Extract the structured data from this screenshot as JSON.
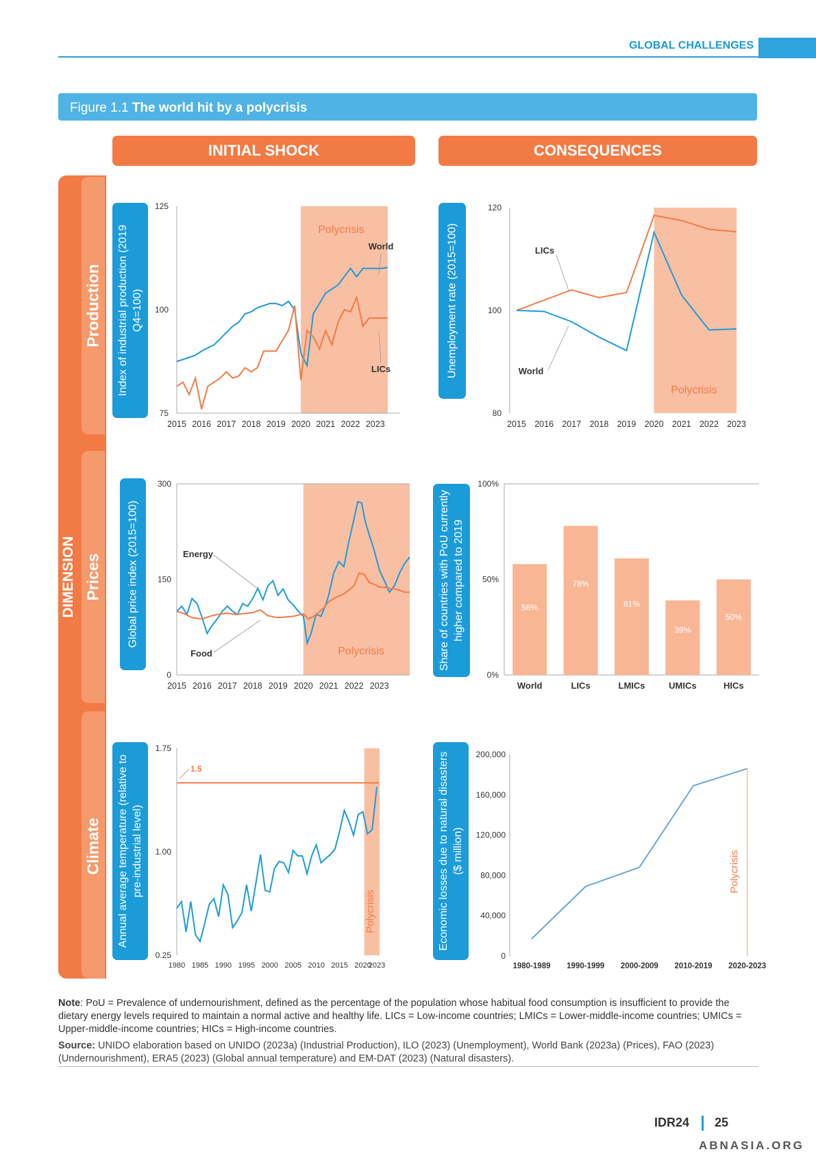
{
  "header": {
    "section": "GLOBAL CHALLENGES"
  },
  "figure": {
    "prefix": "Figure 1.1",
    "title": "The world hit by a polycrisis"
  },
  "columns": {
    "left": "INITIAL SHOCK",
    "right": "CONSEQUENCES"
  },
  "dimension": {
    "label": "DIMENSION",
    "rows": [
      "Production",
      "Prices",
      "Climate"
    ]
  },
  "colors": {
    "blue": "#1c9bd9",
    "orange": "#f27a45",
    "shade": "#f8bfa3",
    "bar": "#f8b694"
  },
  "chart_data": [
    {
      "id": "industrial",
      "type": "line",
      "ylabel": "Index of industrial production (2019 Q4=100)",
      "ylim": [
        75,
        125
      ],
      "yticks": [
        75,
        100,
        125
      ],
      "xlim": [
        2015,
        2024
      ],
      "xticks": [
        2015,
        2016,
        2017,
        2018,
        2019,
        2020,
        2021,
        2022,
        2023
      ],
      "shade": {
        "from": 2020,
        "to": 2023.5,
        "label": "Polycrisis"
      },
      "series": [
        {
          "name": "World",
          "color": "#1c9bd9",
          "x": [
            2015,
            2015.25,
            2015.5,
            2015.75,
            2016,
            2016.25,
            2016.5,
            2016.75,
            2017,
            2017.25,
            2017.5,
            2017.75,
            2018,
            2018.25,
            2018.5,
            2018.75,
            2019,
            2019.25,
            2019.5,
            2019.75,
            2020,
            2020.25,
            2020.5,
            2020.75,
            2021,
            2021.25,
            2021.5,
            2021.75,
            2022,
            2022.25,
            2022.5,
            2022.75,
            2023,
            2023.25,
            2023.5
          ],
          "values": [
            87.5,
            88,
            88.5,
            89,
            90,
            90.8,
            91.5,
            93,
            94.5,
            96,
            97,
            99,
            99.5,
            100.5,
            101,
            101.5,
            101.5,
            101,
            102,
            100,
            89.5,
            86.5,
            99,
            101.5,
            104,
            105,
            106,
            108,
            110,
            108,
            110,
            110,
            110,
            110,
            110.2
          ]
        },
        {
          "name": "LICs",
          "color": "#f27a45",
          "x": [
            2015,
            2015.25,
            2015.5,
            2015.75,
            2016,
            2016.25,
            2016.5,
            2016.75,
            2017,
            2017.25,
            2017.5,
            2017.75,
            2018,
            2018.25,
            2018.5,
            2018.75,
            2019,
            2019.25,
            2019.5,
            2019.75,
            2020,
            2020.25,
            2020.5,
            2020.75,
            2021,
            2021.25,
            2021.5,
            2021.75,
            2022,
            2022.25,
            2022.5,
            2022.75,
            2023,
            2023.25,
            2023.5
          ],
          "values": [
            81.5,
            82.5,
            79.5,
            83.5,
            76,
            81.5,
            82.5,
            83.5,
            85,
            83.5,
            84,
            86,
            85,
            86,
            90,
            90,
            90,
            92.5,
            95,
            101,
            83,
            95,
            93.5,
            90.5,
            95,
            91.5,
            97,
            100,
            99.5,
            103,
            96,
            98,
            98,
            98,
            98
          ]
        }
      ],
      "annotations": [
        "Polycrisis",
        "World",
        "LICs"
      ]
    },
    {
      "id": "unemployment",
      "type": "line",
      "ylabel": "Unemployment rate (2015=100)",
      "ylim": [
        80,
        120
      ],
      "yticks": [
        80,
        100,
        120
      ],
      "xlim": [
        2015,
        2023
      ],
      "xticks": [
        2015,
        2016,
        2017,
        2018,
        2019,
        2020,
        2021,
        2022,
        2023
      ],
      "shade": {
        "from": 2020,
        "to": 2023,
        "label": "Polycrisis"
      },
      "series": [
        {
          "name": "LICs",
          "color": "#f27a45",
          "x": [
            2015,
            2016,
            2017,
            2018,
            2019,
            2020,
            2021,
            2022,
            2023
          ],
          "values": [
            100,
            102,
            104,
            102.5,
            103.5,
            118.5,
            117.5,
            115.8,
            115.3
          ]
        },
        {
          "name": "World",
          "color": "#1c9bd9",
          "x": [
            2015,
            2016,
            2017,
            2018,
            2019,
            2020,
            2021,
            2022,
            2023
          ],
          "values": [
            100,
            99.8,
            97.8,
            94.8,
            92.2,
            115.2,
            103,
            96.2,
            96.4
          ]
        }
      ],
      "annotations": [
        "LICs",
        "World",
        "Polycrisis"
      ]
    },
    {
      "id": "prices",
      "type": "line",
      "ylabel": "Global price index (2015=100)",
      "ylim": [
        0,
        300
      ],
      "yticks": [
        0,
        150,
        300
      ],
      "xlim": [
        2015,
        2024.2
      ],
      "xticks": [
        2015,
        2016,
        2017,
        2018,
        2019,
        2020,
        2021,
        2022,
        2023
      ],
      "shade": {
        "from": 2020,
        "to": 2024.2,
        "label": "Polycrisis"
      },
      "series": [
        {
          "name": "Energy",
          "color": "#1c9bd9",
          "x": [
            2015,
            2015.2,
            2015.4,
            2015.6,
            2015.8,
            2016,
            2016.2,
            2016.4,
            2016.6,
            2016.8,
            2017,
            2017.2,
            2017.4,
            2017.6,
            2017.8,
            2018,
            2018.2,
            2018.4,
            2018.6,
            2018.8,
            2019,
            2019.2,
            2019.4,
            2019.6,
            2019.8,
            2020,
            2020.15,
            2020.3,
            2020.5,
            2020.7,
            2020.9,
            2021,
            2021.2,
            2021.4,
            2021.6,
            2021.8,
            2022,
            2022.15,
            2022.3,
            2022.45,
            2022.6,
            2022.8,
            2023,
            2023.2,
            2023.4,
            2023.6,
            2023.8,
            2024,
            2024.2
          ],
          "values": [
            100,
            108,
            95,
            120,
            112,
            90,
            65,
            78,
            88,
            100,
            108,
            100,
            95,
            112,
            108,
            120,
            136,
            118,
            140,
            148,
            125,
            135,
            118,
            110,
            100,
            92,
            50,
            65,
            95,
            92,
            112,
            125,
            160,
            178,
            170,
            210,
            245,
            272,
            270,
            240,
            220,
            195,
            165,
            148,
            130,
            140,
            160,
            175,
            185
          ]
        },
        {
          "name": "Food",
          "color": "#f27a45",
          "x": [
            2015,
            2015.3,
            2015.6,
            2016,
            2016.3,
            2016.6,
            2017,
            2017.3,
            2017.6,
            2018,
            2018.3,
            2018.6,
            2019,
            2019.3,
            2019.6,
            2020,
            2020.2,
            2020.4,
            2020.6,
            2020.8,
            2021,
            2021.3,
            2021.6,
            2022,
            2022.2,
            2022.4,
            2022.6,
            2022.8,
            2023,
            2023.2,
            2023.4,
            2023.6,
            2023.8,
            2024,
            2024.2
          ],
          "values": [
            100,
            96,
            90,
            88,
            92,
            95,
            97,
            95,
            96,
            98,
            102,
            93,
            90,
            91,
            92,
            96,
            88,
            92,
            98,
            105,
            115,
            122,
            127,
            140,
            160,
            158,
            145,
            142,
            138,
            138,
            136,
            135,
            133,
            130,
            130
          ]
        }
      ],
      "annotations": [
        "Energy",
        "Food",
        "Polycrisis"
      ]
    },
    {
      "id": "pou",
      "type": "bar",
      "ylabel": "Share of countries with PoU currently higher compared to 2019",
      "ylim": [
        0,
        100
      ],
      "yticks": [
        "0%",
        "50%",
        "100%"
      ],
      "categories": [
        "World",
        "LICs",
        "LMICs",
        "UMICs",
        "HICs"
      ],
      "values": [
        58,
        78,
        61,
        39,
        50
      ],
      "labels": [
        "58%",
        "78%",
        "61%",
        "39%",
        "50%"
      ]
    },
    {
      "id": "temperature",
      "type": "line",
      "ylabel": "Annual average temperature (relative to pre-industrial level)",
      "ylim": [
        0.25,
        1.75
      ],
      "yticks": [
        "0.25",
        "1.00",
        "1.75"
      ],
      "xlim": [
        1980,
        2023
      ],
      "xticks": [
        "1980",
        "1985",
        "1990",
        "1995",
        "2000",
        "2005",
        "2010",
        "2015",
        "2020",
        "2023"
      ],
      "shade": {
        "from": 2020,
        "to": 2023,
        "label": "Polycrisis"
      },
      "threshold": {
        "value": 1.5,
        "label": "1.5"
      },
      "series": [
        {
          "name": "",
          "color": "#1c9bd9",
          "x": [
            1980,
            1981,
            1982,
            1983,
            1984,
            1985,
            1986,
            1987,
            1988,
            1989,
            1990,
            1991,
            1992,
            1993,
            1994,
            1995,
            1996,
            1997,
            1998,
            1999,
            2000,
            2001,
            2002,
            2003,
            2004,
            2005,
            2006,
            2007,
            2008,
            2009,
            2010,
            2011,
            2012,
            2013,
            2014,
            2015,
            2016,
            2017,
            2018,
            2019,
            2020,
            2021,
            2022,
            2023
          ],
          "values": [
            0.59,
            0.64,
            0.42,
            0.64,
            0.4,
            0.35,
            0.48,
            0.62,
            0.66,
            0.53,
            0.76,
            0.69,
            0.45,
            0.5,
            0.56,
            0.76,
            0.57,
            0.77,
            0.98,
            0.72,
            0.71,
            0.88,
            0.93,
            0.92,
            0.85,
            1.01,
            0.97,
            0.97,
            0.84,
            0.97,
            1.05,
            0.92,
            0.95,
            0.98,
            1.02,
            1.15,
            1.3,
            1.22,
            1.12,
            1.27,
            1.29,
            1.13,
            1.16,
            1.47
          ]
        }
      ],
      "annotations": [
        "1.5",
        "Polycrisis"
      ]
    },
    {
      "id": "losses",
      "type": "line",
      "ylabel": "Economic losses due to natural disasters ($ million)",
      "ylim": [
        0,
        200000
      ],
      "yticks": [
        "0",
        "40,000",
        "80,000",
        "120,000",
        "160,000",
        "200,000"
      ],
      "categories": [
        "1980-1989",
        "1990-1999",
        "2000-2009",
        "2010-2019",
        "2020-2023"
      ],
      "series": [
        {
          "name": "",
          "color": "#6aa6d6",
          "values": [
            17000,
            69000,
            88000,
            169000,
            186000
          ]
        }
      ],
      "annotations": [
        "Polycrisis"
      ]
    }
  ],
  "note": {
    "label": "Note",
    "text": ": PoU = Prevalence of undernourishment, defined as the percentage of the population whose habitual food consumption is insufficient to provide the dietary energy levels required to maintain a normal active and healthy life. LICs = Low-income countries; LMICs = Lower-middle-income countries; UMICs = Upper-middle-income countries; HICs = High-income countries."
  },
  "source": {
    "label": "Source:",
    "text": " UNIDO elaboration based on UNIDO (2023a) (Industrial Production), ILO (2023) (Unemployment), World Bank (2023a) (Prices), FAO (2023) (Undernourishment), ERA5 (2023) (Global annual temperature) and EM-DAT (2023) (Natural disasters)."
  },
  "footer": {
    "report": "IDR24",
    "page": "25"
  },
  "watermark": "ABNASIA.ORG"
}
